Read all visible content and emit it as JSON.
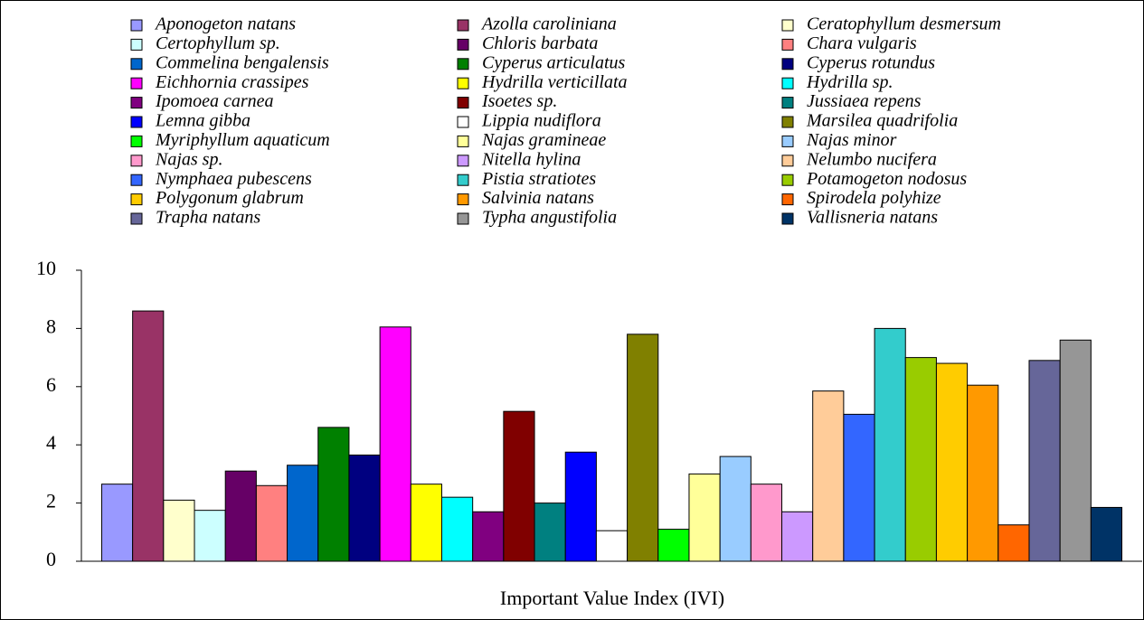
{
  "chart_data": {
    "type": "bar",
    "x_label": "Important Value Index (IVI)",
    "categories": [
      null
    ],
    "ylim": [
      0,
      10
    ],
    "yticks": [
      0,
      2,
      4,
      6,
      8,
      10
    ],
    "series": [
      {
        "name": "Aponogeton natans",
        "color": "#9999ff",
        "values": [
          2.65
        ]
      },
      {
        "name": "Azolla caroliniana",
        "color": "#993366",
        "values": [
          8.6
        ]
      },
      {
        "name": "Ceratophyllum desmersum",
        "color": "#ffffcc",
        "values": [
          2.1
        ]
      },
      {
        "name": "Certophyllum sp.",
        "color": "#ccffff",
        "values": [
          1.75
        ]
      },
      {
        "name": "Chloris barbata",
        "color": "#660066",
        "values": [
          3.1
        ]
      },
      {
        "name": "Chara vulgaris",
        "color": "#ff8080",
        "values": [
          2.6
        ]
      },
      {
        "name": "Commelina bengalensis",
        "color": "#0066cc",
        "values": [
          3.3
        ]
      },
      {
        "name": "Cyperus articulatus",
        "color": "#008000",
        "values": [
          4.6
        ]
      },
      {
        "name": "Cyperus rotundus",
        "color": "#000080",
        "values": [
          3.65
        ]
      },
      {
        "name": "Eichhornia crassipes",
        "color": "#ff00ff",
        "values": [
          8.05
        ]
      },
      {
        "name": "Hydrilla verticillata",
        "color": "#ffff00",
        "values": [
          2.65
        ]
      },
      {
        "name": "Hydrilla sp.",
        "color": "#00ffff",
        "values": [
          2.2
        ]
      },
      {
        "name": "Ipomoea carnea",
        "color": "#800080",
        "values": [
          1.7
        ]
      },
      {
        "name": "Isoetes sp.",
        "color": "#800000",
        "values": [
          5.15
        ]
      },
      {
        "name": "Jussiaea repens",
        "color": "#008080",
        "values": [
          2.0
        ]
      },
      {
        "name": "Lemna gibba",
        "color": "#0000ff",
        "values": [
          3.75
        ]
      },
      {
        "name": "Lippia nudiflora",
        "color": "#ffffff",
        "values": [
          1.05
        ]
      },
      {
        "name": "Marsilea quadrifolia",
        "color": "#808000",
        "values": [
          7.8
        ]
      },
      {
        "name": "Myriphyllum aquaticum",
        "color": "#00ff00",
        "values": [
          1.1
        ]
      },
      {
        "name": "Najas gramineae",
        "color": "#ffff99",
        "values": [
          3.0
        ]
      },
      {
        "name": "Najas minor",
        "color": "#99ccff",
        "values": [
          3.6
        ]
      },
      {
        "name": "Najas sp.",
        "color": "#ff99cc",
        "values": [
          2.65
        ]
      },
      {
        "name": "Nitella hylina",
        "color": "#cc99ff",
        "values": [
          1.7
        ]
      },
      {
        "name": "Nelumbo nucifera",
        "color": "#ffcc99",
        "values": [
          5.85
        ]
      },
      {
        "name": "Nymphaea pubescens",
        "color": "#3366ff",
        "values": [
          5.05
        ]
      },
      {
        "name": "Pistia stratiotes",
        "color": "#33cccc",
        "values": [
          8.0
        ]
      },
      {
        "name": "Potamogeton nodosus",
        "color": "#99cc00",
        "values": [
          7.0
        ]
      },
      {
        "name": "Polygonum glabrum",
        "color": "#ffcc00",
        "values": [
          6.8
        ]
      },
      {
        "name": "Salvinia natans",
        "color": "#ff9900",
        "values": [
          6.05
        ]
      },
      {
        "name": "Spirodela polyhize",
        "color": "#ff6600",
        "values": [
          1.25
        ]
      },
      {
        "name": "Trapha natans",
        "color": "#666699",
        "values": [
          6.9
        ]
      },
      {
        "name": "Typha angustifolia",
        "color": "#969696",
        "values": [
          7.6
        ]
      },
      {
        "name": "Vallisneria natans",
        "color": "#003366",
        "values": [
          1.85
        ]
      }
    ]
  }
}
